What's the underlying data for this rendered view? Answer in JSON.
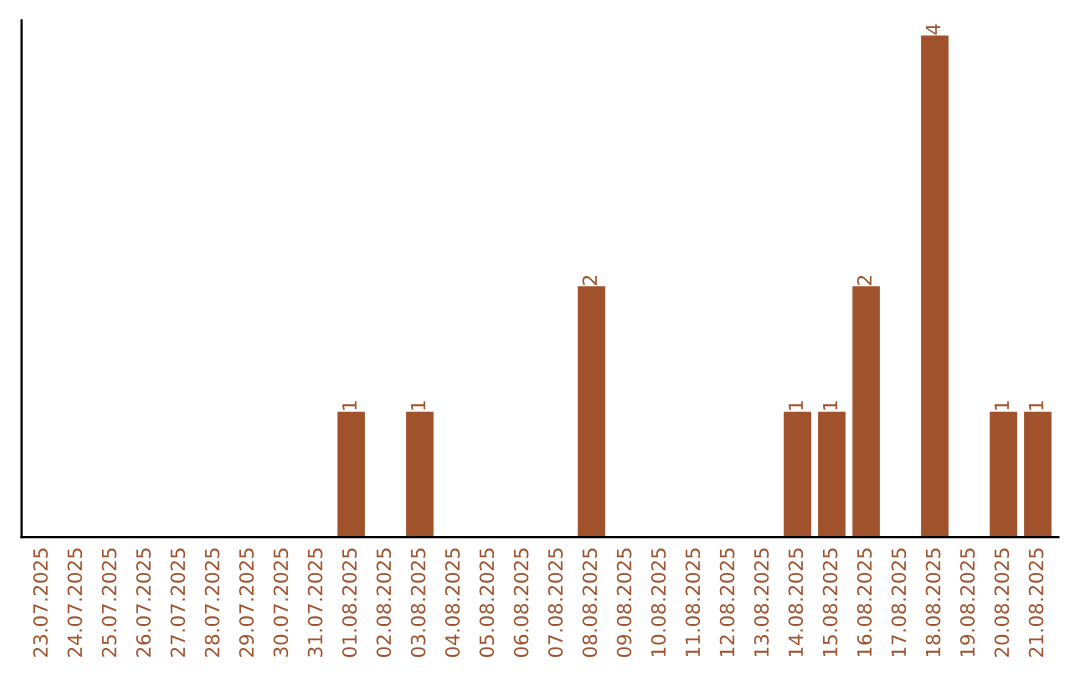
{
  "chart_data": {
    "type": "bar",
    "categories": [
      "23.07.2025",
      "24.07.2025",
      "25.07.2025",
      "26.07.2025",
      "27.07.2025",
      "28.07.2025",
      "29.07.2025",
      "30.07.2025",
      "31.07.2025",
      "01.08.2025",
      "02.08.2025",
      "03.08.2025",
      "04.08.2025",
      "05.08.2025",
      "06.08.2025",
      "07.08.2025",
      "08.08.2025",
      "09.08.2025",
      "10.08.2025",
      "11.08.2025",
      "12.08.2025",
      "13.08.2025",
      "14.08.2025",
      "15.08.2025",
      "16.08.2025",
      "17.08.2025",
      "18.08.2025",
      "19.08.2025",
      "20.08.2025",
      "21.08.2025"
    ],
    "values": [
      0,
      0,
      0,
      0,
      0,
      0,
      0,
      0,
      0,
      1,
      0,
      1,
      0,
      0,
      0,
      0,
      2,
      0,
      0,
      0,
      0,
      0,
      1,
      1,
      2,
      0,
      4,
      0,
      1,
      1
    ],
    "value_labels": [
      null,
      null,
      null,
      null,
      null,
      null,
      null,
      null,
      null,
      "1",
      null,
      "1",
      null,
      null,
      null,
      null,
      "2",
      null,
      null,
      null,
      null,
      null,
      "1",
      "1",
      "2",
      null,
      "4",
      null,
      "1",
      "1"
    ],
    "color": "#a0522d",
    "tick_labels": "x",
    "grid": false,
    "legend": false
  }
}
